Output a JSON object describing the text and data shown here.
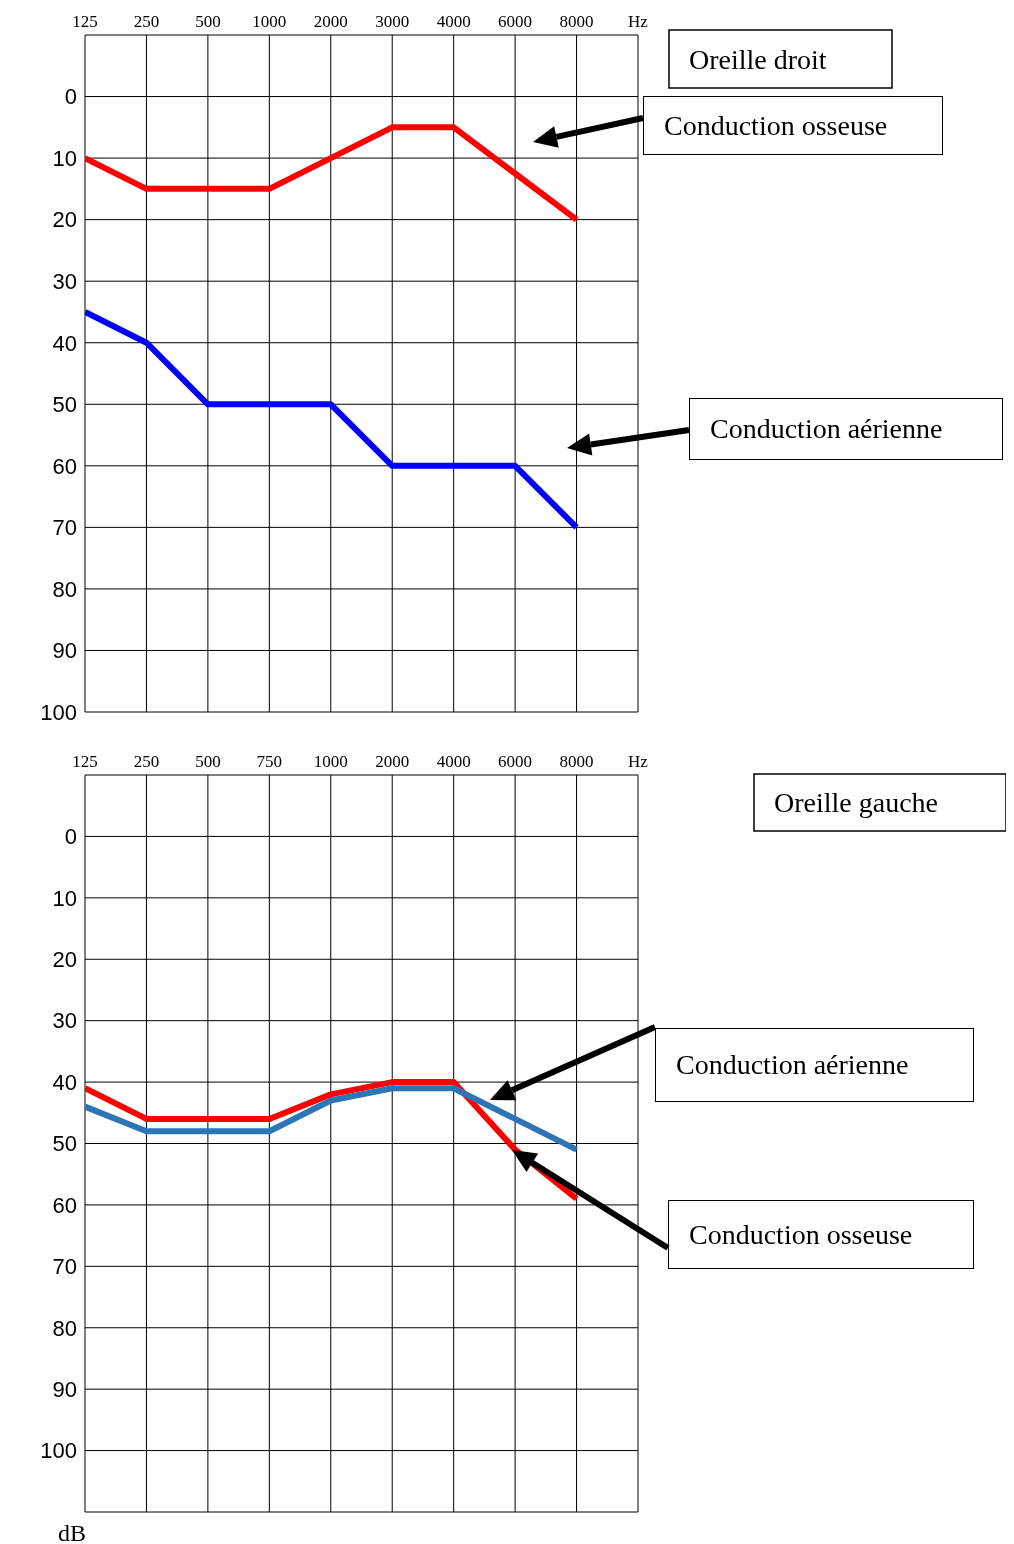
{
  "chart_data": [
    {
      "type": "line",
      "annotations": [
        "Oreille droit"
      ],
      "xlabel": "Hz",
      "categories": [
        "125",
        "250",
        "500",
        "1000",
        "2000",
        "3000",
        "4000",
        "6000",
        "8000"
      ],
      "series": [
        {
          "name": "Conduction osseuse",
          "color": "#ff0000",
          "values": [
            10,
            15,
            15,
            15,
            10,
            5,
            5,
            12.5,
            20
          ]
        },
        {
          "name": "Conduction aérienne",
          "color": "#0000ff",
          "values": [
            35,
            40,
            50,
            50,
            50,
            60,
            60,
            60,
            70
          ]
        }
      ],
      "ylim": [
        100,
        -10
      ],
      "yticks": [
        0,
        10,
        20,
        30,
        40,
        50,
        60,
        70,
        80,
        90,
        100
      ],
      "grid": true,
      "marker": "none",
      "line_style": "solid"
    },
    {
      "type": "line",
      "annotations": [
        "Oreille gauche"
      ],
      "xlabel": "Hz",
      "ylabel": "dB",
      "categories": [
        "125",
        "250",
        "500",
        "750",
        "1000",
        "2000",
        "4000",
        "6000",
        "8000"
      ],
      "series": [
        {
          "name": "Conduction osseuse",
          "color": "#ff0000",
          "values": [
            41,
            46,
            46,
            46,
            42,
            40,
            40,
            51,
            59
          ]
        },
        {
          "name": "Conduction aérienne",
          "color": "#2e75b6",
          "values": [
            44,
            48,
            48,
            48,
            43,
            41,
            41,
            46,
            51
          ]
        }
      ],
      "ylim": [
        110,
        -10
      ],
      "yticks": [
        0,
        10,
        20,
        30,
        40,
        50,
        60,
        70,
        80,
        90,
        100
      ],
      "grid": true,
      "marker": "none",
      "line_style": "solid"
    }
  ]
}
